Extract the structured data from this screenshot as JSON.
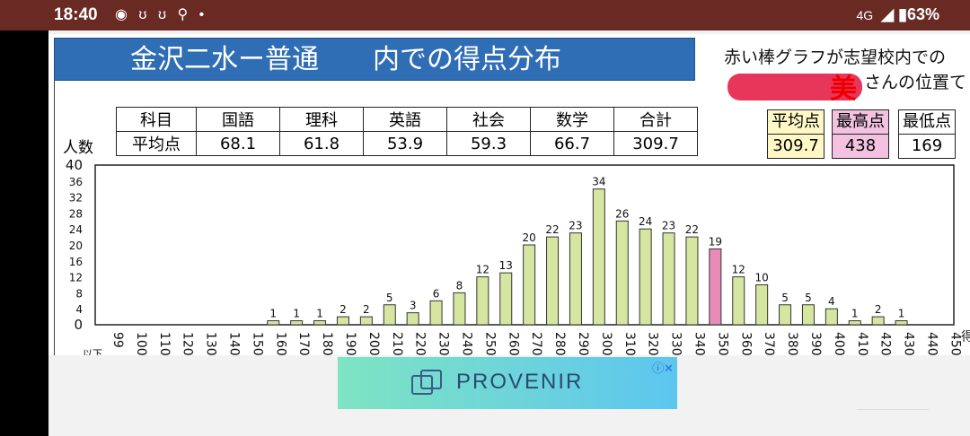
{
  "status_bar": {
    "time": "18:40",
    "icons": "◉ ʊ ʊ ⚲ •",
    "network": "4G",
    "battery": "◢ ▮63%"
  },
  "page": {
    "title": "金沢二水ー普通　　内での得点分布",
    "note": "赤い棒グラフが志望校内での",
    "note_suffix": "さんの位置て",
    "scribble": "美"
  },
  "subject_table": {
    "row_header": [
      "科目",
      "平均点"
    ],
    "subjects": [
      {
        "name": "国語",
        "avg": "68.1"
      },
      {
        "name": "理科",
        "avg": "61.8"
      },
      {
        "name": "英語",
        "avg": "53.9"
      },
      {
        "name": "社会",
        "avg": "59.3"
      },
      {
        "name": "数学",
        "avg": "66.7"
      },
      {
        "name": "合計",
        "avg": "309.7"
      }
    ]
  },
  "stats": {
    "avg_label": "平均点",
    "avg_value": "309.7",
    "max_label": "最高点",
    "max_value": "438",
    "min_label": "最低点",
    "min_value": "169"
  },
  "chart_data": {
    "type": "bar",
    "ylabel": "人数",
    "ylim": [
      0,
      40
    ],
    "yticks": [
      0,
      4,
      8,
      12,
      16,
      20,
      24,
      28,
      32,
      36,
      40
    ],
    "categories": [
      "99",
      "100",
      "110",
      "120",
      "130",
      "140",
      "150",
      "160",
      "170",
      "180",
      "190",
      "200",
      "210",
      "220",
      "230",
      "240",
      "250",
      "260",
      "270",
      "280",
      "290",
      "300",
      "310",
      "320",
      "330",
      "340",
      "350",
      "360",
      "370",
      "380",
      "390",
      "400",
      "410",
      "420",
      "430",
      "440",
      "450"
    ],
    "values": [
      0,
      0,
      0,
      0,
      0,
      0,
      0,
      1,
      1,
      1,
      2,
      2,
      5,
      3,
      6,
      8,
      12,
      13,
      20,
      22,
      23,
      34,
      26,
      24,
      23,
      22,
      19,
      12,
      10,
      5,
      5,
      4,
      1,
      2,
      1,
      0,
      0
    ],
    "highlight_category": "350",
    "bar_color": "#d6e6a0",
    "highlight_color": "#e98bb8",
    "partial_labels": [
      "以下",
      "得"
    ]
  },
  "ad": {
    "text": "PROVENIR",
    "close": "ⓘ✕"
  }
}
